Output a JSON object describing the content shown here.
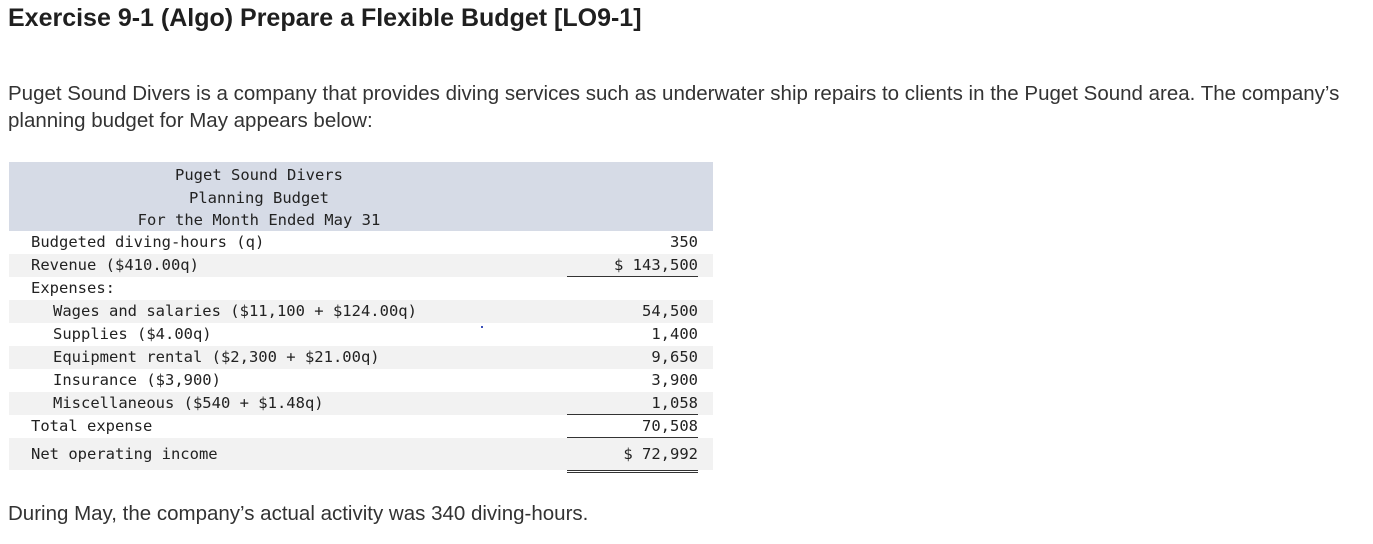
{
  "title": "Exercise 9-1 (Algo) Prepare a Flexible Budget [LO9-1]",
  "intro": "Puget Sound Divers is a company that provides diving services such as underwater ship repairs to clients in the Puget Sound area. The company’s planning budget for May appears below:",
  "budget": {
    "header": [
      "Puget Sound Divers",
      "Planning Budget",
      "For the Month Ended May 31"
    ],
    "rows": [
      {
        "label": "Budgeted diving-hours (q)",
        "value": "350"
      },
      {
        "label": "Revenue ($410.00q)",
        "value": "$ 143,500"
      },
      {
        "label": "Expenses:",
        "value": ""
      },
      {
        "label": "Wages and salaries ($11,100 + $124.00q)",
        "value": "54,500"
      },
      {
        "label": "Supplies ($4.00q)",
        "value": "1,400"
      },
      {
        "label": "Equipment rental ($2,300 + $21.00q)",
        "value": "9,650"
      },
      {
        "label": "Insurance ($3,900)",
        "value": "3,900"
      },
      {
        "label": "Miscellaneous ($540 + $1.48q)",
        "value": "1,058"
      },
      {
        "label": "Total expense",
        "value": "70,508"
      },
      {
        "label": "Net operating income",
        "value": "$ 72,992"
      }
    ]
  },
  "outro": "During May, the company’s actual activity was 340 diving-hours."
}
